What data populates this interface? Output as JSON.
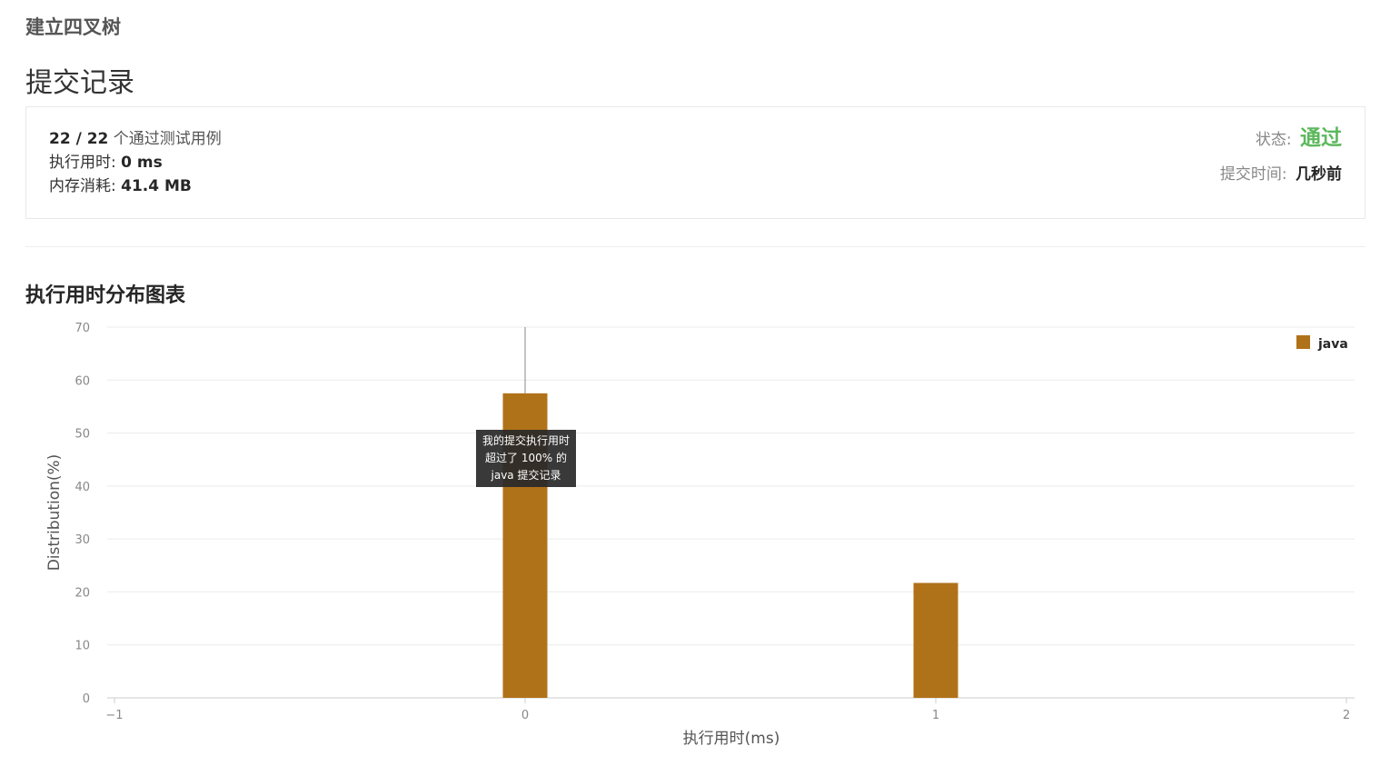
{
  "problem": {
    "title": "建立四叉树"
  },
  "section": {
    "title": "提交记录"
  },
  "result": {
    "testcases": "22 / 22",
    "testcases_suffix": "个通过测试用例",
    "runtime_label": "执行用时:",
    "runtime_value": "0 ms",
    "memory_label": "内存消耗:",
    "memory_value": "41.4 MB",
    "status_label": "状态:",
    "status_value": "通过",
    "submit_time_label": "提交时间:",
    "submit_time_value": "几秒前"
  },
  "chart_section": {
    "title": "执行用时分布图表"
  },
  "chart_data": {
    "type": "bar",
    "xlabel": "执行用时(ms)",
    "ylabel": "Distribution(%)",
    "xlim": [
      -1,
      2
    ],
    "ylim": [
      0,
      70
    ],
    "x_ticks": [
      "−1",
      "0",
      "1",
      "2"
    ],
    "y_ticks": [
      "0",
      "10",
      "20",
      "30",
      "40",
      "50",
      "60",
      "70"
    ],
    "legend_position": "top-right",
    "grid": true,
    "series": [
      {
        "name": "java",
        "color": "#b07219",
        "x": [
          0,
          1
        ],
        "values": [
          57.5,
          21.7
        ]
      }
    ],
    "marker_x": 0,
    "tooltip": [
      "我的提交执行用时",
      "超过了 100% 的",
      "java 提交记录"
    ]
  }
}
